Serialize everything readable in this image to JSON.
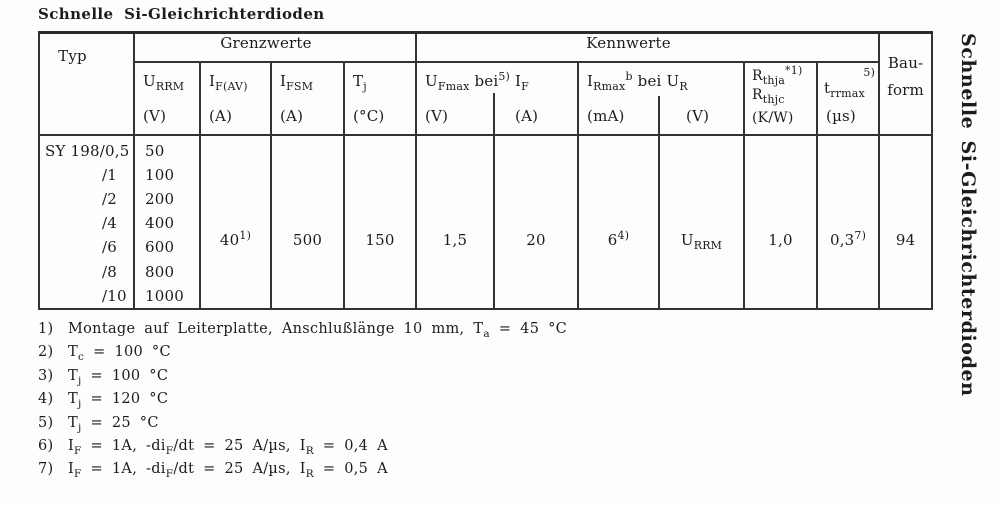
{
  "page": {
    "title": "Schnelle Si-Gleichrichterdioden",
    "side_tab": "Schnelle Si-Gleichrichterdioden"
  },
  "table": {
    "typ_label": "Typ",
    "grenzwerte_label": "Grenzwerte",
    "kennwerte_label": "Kennwerte",
    "bauform_line1": "Bau-",
    "bauform_line2": "form",
    "headers": {
      "urrm": {
        "base": "U",
        "sub": "RRM",
        "unit": "(V)"
      },
      "ifav": {
        "base": "I",
        "sub": "F(AV)",
        "unit": "(A)"
      },
      "ifsm": {
        "base": "I",
        "sub": "FSM",
        "unit": "(A)"
      },
      "tj": {
        "base": "T",
        "sub": "j",
        "unit": "(°C)"
      },
      "ufmax_if": {
        "b1": "U",
        "s1": "Fmax",
        "mid": "bei",
        "sup": "5)",
        "b2": "I",
        "s2": "F",
        "unit1": "(V)",
        "unit2": "(A)"
      },
      "irmax_ur": {
        "b1": "I",
        "s1": "Rmax",
        "sup": "b",
        "mid": "bei",
        "b2": "U",
        "s2": "R",
        "unit1": "(mA)",
        "unit2": "(V)"
      },
      "rth": {
        "b1": "R",
        "s1": "thja",
        "sup": "*1)",
        "b2": "R",
        "s2": "thjc",
        "unit": "(K/W)"
      },
      "trr": {
        "sup": "5)",
        "base": "t",
        "sub": "rrmax",
        "unit": "(µs)"
      }
    },
    "body": {
      "types": [
        "SY 198/0,5",
        "/1",
        "/2",
        "/4",
        "/6",
        "/8",
        "/10"
      ],
      "urrm_values": [
        "50",
        "100",
        "200",
        "400",
        "600",
        "800",
        "1000"
      ],
      "ifav_value": "40",
      "ifav_sup": "1)",
      "ifsm_value": "500",
      "tj_value": "150",
      "ufmax_value": "1,5",
      "if_value": "20",
      "irmax_value": "6",
      "irmax_sup": "4)",
      "ur_base": "U",
      "ur_sub": "RRM",
      "rth_value": "1,0",
      "trr_value": "0,3",
      "trr_sup": "7)",
      "bauform_value": "94"
    }
  },
  "footnotes": [
    {
      "marker": "1)",
      "segments": [
        {
          "t": "Montage auf Leiterplatte, Anschlußlänge 10 mm, T"
        },
        {
          "s": "a"
        },
        {
          "t": " = 45 °C"
        }
      ]
    },
    {
      "marker": "2)",
      "segments": [
        {
          "t": "T"
        },
        {
          "s": "c"
        },
        {
          "t": " = 100 °C"
        }
      ]
    },
    {
      "marker": "3)",
      "segments": [
        {
          "t": "T"
        },
        {
          "s": "j"
        },
        {
          "t": " = 100 °C"
        }
      ]
    },
    {
      "marker": "4)",
      "segments": [
        {
          "t": "T"
        },
        {
          "s": "j"
        },
        {
          "t": " = 120 °C"
        }
      ]
    },
    {
      "marker": "5)",
      "segments": [
        {
          "t": "T"
        },
        {
          "s": "j"
        },
        {
          "t": " = 25 °C"
        }
      ]
    },
    {
      "marker": "6)",
      "segments": [
        {
          "t": "I"
        },
        {
          "s": "F"
        },
        {
          "t": " = 1A, -di"
        },
        {
          "s": "F"
        },
        {
          "t": "/dt = 25 A/µs, I"
        },
        {
          "s": "R"
        },
        {
          "t": " = 0,4 A"
        }
      ]
    },
    {
      "marker": "7)",
      "segments": [
        {
          "t": "I"
        },
        {
          "s": "F"
        },
        {
          "t": " = 1A, -di"
        },
        {
          "s": "F"
        },
        {
          "t": "/dt = 25 A/µs, I"
        },
        {
          "s": "R"
        },
        {
          "t": " = 0,5 A"
        }
      ]
    }
  ]
}
